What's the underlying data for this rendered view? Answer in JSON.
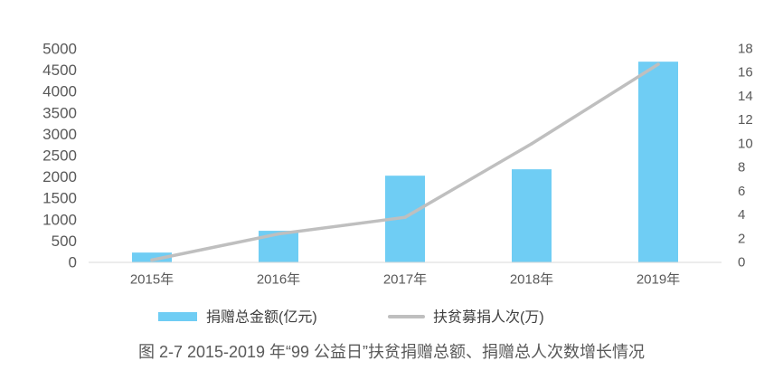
{
  "chart_data": {
    "type": "bar",
    "caption": "图 2-7 2015-2019 年“99 公益日”扶贫捐赠总额、捐赠总人次数增长情况",
    "categories": [
      "2015年",
      "2016年",
      "2017年",
      "2018年",
      "2019年"
    ],
    "series": [
      {
        "name": "捐赠总金额(亿元)",
        "type": "bar",
        "axis": "left",
        "color": "#6FCDF4",
        "values": [
          230,
          740,
          2030,
          2180,
          4700
        ]
      },
      {
        "name": "扶贫募捐人次(万)",
        "type": "line",
        "axis": "right",
        "color": "#BFBFBF",
        "values": [
          0.2,
          2.4,
          3.8,
          10.0,
          16.7
        ]
      }
    ],
    "y_left": {
      "range": [
        0,
        5000
      ],
      "ticks": [
        "0",
        "500",
        "1000",
        "1500",
        "2000",
        "2500",
        "3000",
        "3500",
        "4000",
        "4500",
        "5000"
      ]
    },
    "y_right": {
      "range": [
        0,
        18
      ],
      "ticks": [
        "0",
        "2",
        "4",
        "6",
        "8",
        "10",
        "12",
        "14",
        "16",
        "18"
      ]
    },
    "grid": false,
    "legend": "bottom"
  }
}
